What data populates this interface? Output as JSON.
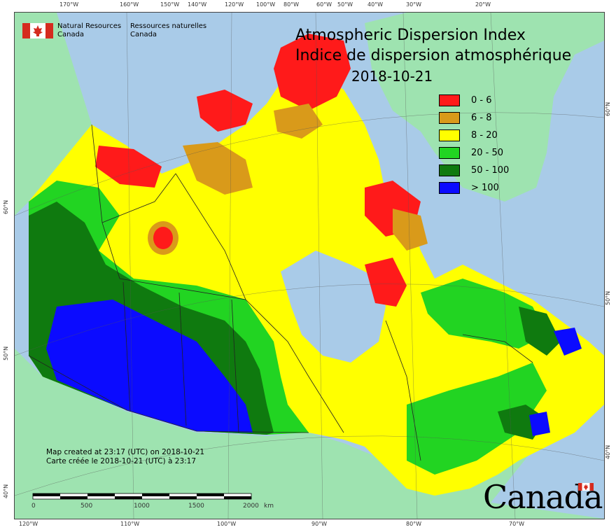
{
  "title": {
    "en": "Atmospheric Dispersion Index",
    "fr": "Indice de dispersion atmosphérique",
    "date": "2018-10-21"
  },
  "credits": {
    "en_line1": "Natural Resources",
    "en_line2": "Canada",
    "fr_line1": "Ressources naturelles",
    "fr_line2": "Canada"
  },
  "legend": [
    {
      "label": "0 - 6",
      "color": "#ff1a1a"
    },
    {
      "label": "6 - 8",
      "color": "#d99a1a"
    },
    {
      "label": "8 - 20",
      "color": "#ffff00"
    },
    {
      "label": "20 - 50",
      "color": "#22d422"
    },
    {
      "label": "50 - 100",
      "color": "#0f7a0f"
    },
    {
      "label": "> 100",
      "color": "#0b0bff"
    }
  ],
  "notes": {
    "line1": "Map created at 23:17 (UTC) on 2018-10-21",
    "line2": "Carte créée le 2018-10-21 (UTC) à 23:17"
  },
  "scale_bar": {
    "labels": [
      "0",
      "500",
      "1000",
      "1500",
      "2000"
    ],
    "unit": "km"
  },
  "top_ticks": [
    "170°W",
    "160°W",
    "150°W",
    "140°W",
    "120°W",
    "100°W",
    "80°W",
    "60°W",
    "50°W",
    "40°W",
    "30°W",
    "20°W"
  ],
  "bottom_ticks": [
    "120°W",
    "110°W",
    "100°W",
    "90°W",
    "80°W",
    "70°W"
  ],
  "left_ticks": [
    "60°N",
    "50°N",
    "40°N"
  ],
  "right_ticks": [
    "60°N",
    "50°N",
    "40°N"
  ],
  "wordmark": "Canada",
  "colors": {
    "ocean": "#a9cbe8",
    "land_outside": "#9ee3b0",
    "greenland": "#9ee3b0"
  }
}
